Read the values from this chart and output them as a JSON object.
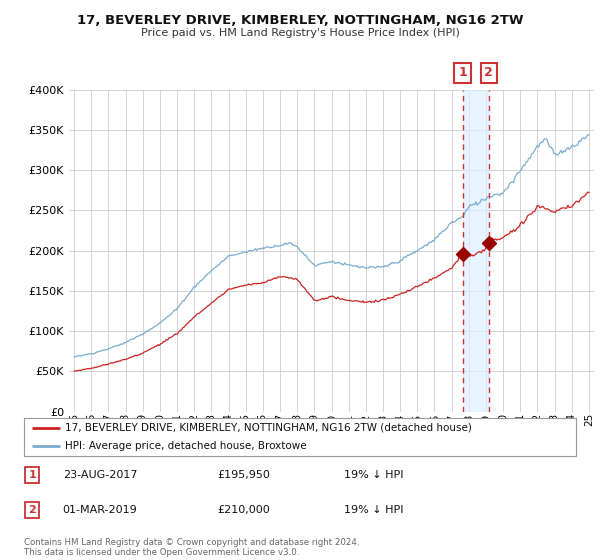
{
  "title": "17, BEVERLEY DRIVE, KIMBERLEY, NOTTINGHAM, NG16 2TW",
  "subtitle": "Price paid vs. HM Land Registry's House Price Index (HPI)",
  "hpi_color": "#7aadcf",
  "price_color": "#cc2222",
  "marker_color": "#990000",
  "vline_color": "#cc3333",
  "shade_color": "#ddeeff",
  "background_color": "#ffffff",
  "grid_color": "#cccccc",
  "legend_label_red": "17, BEVERLEY DRIVE, KIMBERLEY, NOTTINGHAM, NG16 2TW (detached house)",
  "legend_label_blue": "HPI: Average price, detached house, Broxtowe",
  "sale1_date": "23-AUG-2017",
  "sale1_price": "£195,950",
  "sale1_hpi": "19% ↓ HPI",
  "sale2_date": "01-MAR-2019",
  "sale2_price": "£210,000",
  "sale2_hpi": "19% ↓ HPI",
  "footer": "Contains HM Land Registry data © Crown copyright and database right 2024.\nThis data is licensed under the Open Government Licence v3.0.",
  "ylim": [
    0,
    400000
  ],
  "yticks": [
    0,
    50000,
    100000,
    150000,
    200000,
    250000,
    300000,
    350000,
    400000
  ],
  "sale1_year": 2017.64,
  "sale2_year": 2019.17,
  "sale1_value": 195950,
  "sale2_value": 210000,
  "xmin": 1995,
  "xmax": 2025
}
